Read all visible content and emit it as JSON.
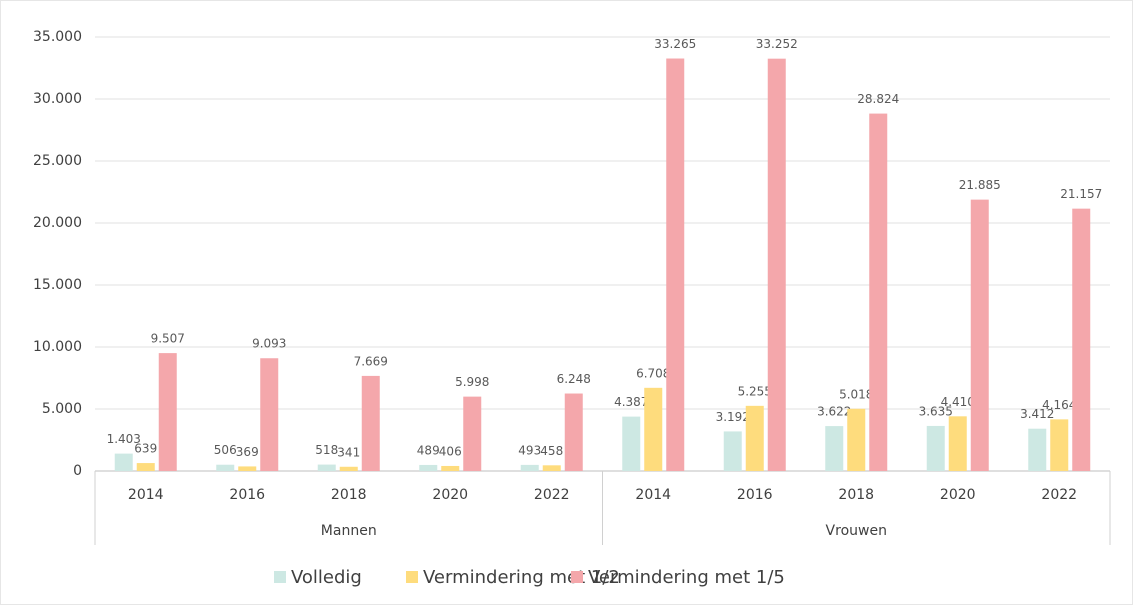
{
  "chart_data": {
    "type": "bar",
    "groups": [
      {
        "name": "Mannen",
        "categories": [
          "2014",
          "2016",
          "2018",
          "2020",
          "2022"
        ]
      },
      {
        "name": "Vrouwen",
        "categories": [
          "2014",
          "2016",
          "2018",
          "2020",
          "2022"
        ]
      }
    ],
    "series": [
      {
        "name": "Volledig",
        "color": "#cde8e3",
        "values": [
          1403,
          506,
          518,
          489,
          493,
          4387,
          3192,
          3622,
          3635,
          3412
        ],
        "value_labels": [
          "1.403",
          "506",
          "518",
          "489",
          "493",
          "4.387",
          "3.192",
          "3.622",
          "3.635",
          "3.412"
        ]
      },
      {
        "name": "Vermindering met 1/2",
        "color": "#fedc7d",
        "values": [
          639,
          369,
          341,
          406,
          458,
          6708,
          5255,
          5018,
          4410,
          4164
        ],
        "value_labels": [
          "639",
          "369",
          "341",
          "406",
          "458",
          "6.708",
          "5.255",
          "5.018",
          "4.410",
          "4.164"
        ]
      },
      {
        "name": "Vermindering met 1/5",
        "color": "#f4a7ab",
        "values": [
          9507,
          9093,
          7669,
          5998,
          6248,
          33265,
          33252,
          28824,
          21885,
          21157
        ],
        "value_labels": [
          "9.507",
          "9.093",
          "7.669",
          "5.998",
          "6.248",
          "33.265",
          "33.252",
          "28.824",
          "21.885",
          "21.157"
        ]
      }
    ],
    "ylim": [
      0,
      35000
    ],
    "yticks": [
      0,
      {
        "value": 5000,
        "label": "5.000"
      },
      {
        "value": 10000,
        "label": "10.000"
      },
      {
        "value": 15000,
        "label": "15.000"
      },
      {
        "value": 20000,
        "label": "20.000"
      },
      {
        "value": 25000,
        "label": "25.000"
      },
      {
        "value": 30000,
        "label": "30.000"
      },
      {
        "value": 35000,
        "label": "35.000"
      }
    ],
    "grid": true,
    "legend": "bottom"
  }
}
